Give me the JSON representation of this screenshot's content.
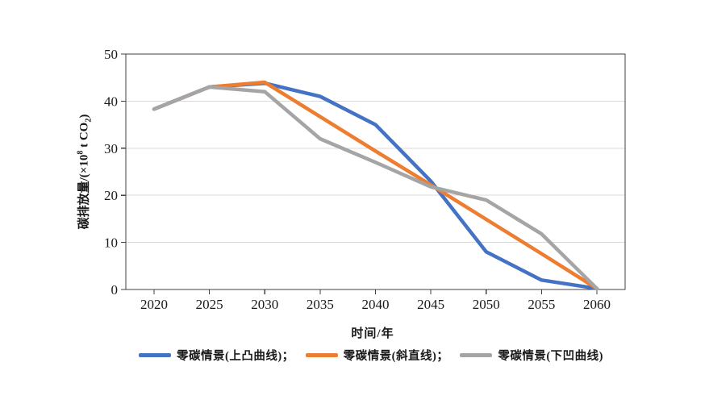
{
  "chart_data": {
    "type": "line",
    "title": "",
    "xlabel": "时间/年",
    "ylabel": "碳排放量/(×10⁸ t CO₂)",
    "ylabel_parts": {
      "prefix": "碳排放量/(×10",
      "sup": "8",
      "mid": " t CO",
      "sub": "2",
      "suffix": ")"
    },
    "x": [
      2020,
      2025,
      2030,
      2035,
      2040,
      2045,
      2050,
      2055,
      2060
    ],
    "xticks": [
      "2020",
      "2025",
      "2030",
      "2035",
      "2040",
      "2045",
      "2050",
      "2055",
      "2060"
    ],
    "yticks": [
      "0",
      "10",
      "20",
      "30",
      "40",
      "50"
    ],
    "ytick_values": [
      0,
      10,
      20,
      30,
      40,
      50
    ],
    "ylim": [
      0,
      50
    ],
    "xlim": [
      2020,
      2060
    ],
    "grid": "horizontal",
    "legend_position": "bottom",
    "series": [
      {
        "name": "零碳情景(上凸曲线)",
        "legend_label": "零碳情景(上凸曲线)；",
        "color": "#4472C4",
        "values": [
          38.3,
          43,
          43.8,
          41,
          35,
          23,
          8,
          2,
          0.2
        ]
      },
      {
        "name": "零碳情景(斜直线)",
        "legend_label": "零碳情景(斜直线)；",
        "color": "#ED7D31",
        "values": [
          38.3,
          43,
          44,
          36.7,
          29.4,
          22.2,
          14.9,
          7.6,
          0.2
        ]
      },
      {
        "name": "零碳情景(下凹曲线)",
        "legend_label": "零碳情景(下凹曲线)",
        "color": "#A5A5A5",
        "values": [
          38.3,
          43,
          42,
          32,
          27,
          21.8,
          19,
          11.8,
          0.2
        ]
      }
    ],
    "colors": {
      "frame": "#404040",
      "gridline": "#D9D9D9",
      "background": "#FFFFFF",
      "text": "#1A1A1A"
    }
  }
}
